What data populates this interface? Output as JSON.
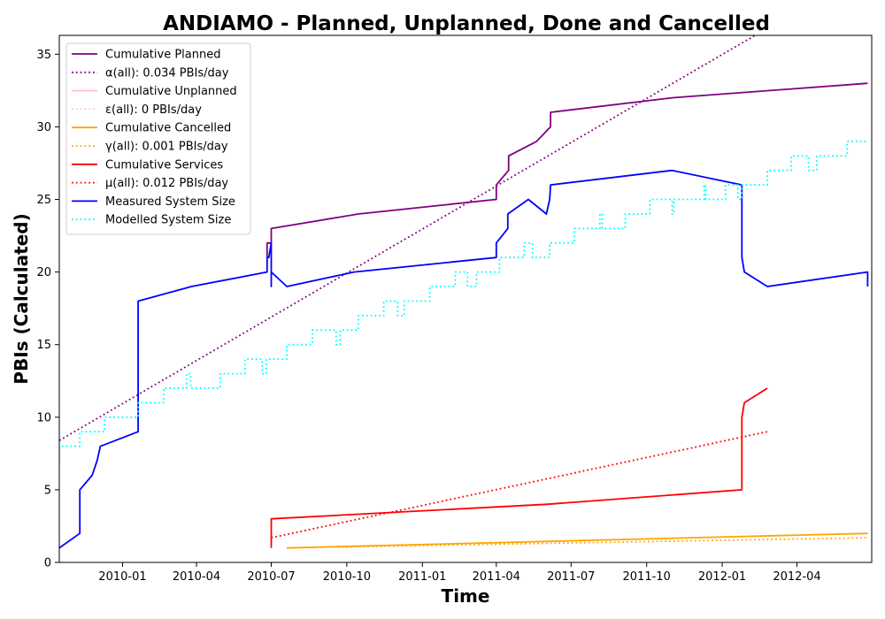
{
  "chart_data": {
    "type": "line",
    "title": "ANDIAMO - Planned, Unplanned, Done  and Cancelled",
    "xlabel": "Time",
    "ylabel": "PBIs (Calculated)",
    "xlim": [
      "2009-10-16",
      "2012-07-01"
    ],
    "ylim": [
      0,
      36.3
    ],
    "x_ticks": [
      "2010-01",
      "2010-04",
      "2010-07",
      "2010-10",
      "2011-01",
      "2011-04",
      "2011-07",
      "2011-10",
      "2012-01",
      "2012-04"
    ],
    "y_ticks": [
      0,
      5,
      10,
      15,
      20,
      25,
      30,
      35
    ],
    "grid": false,
    "legend_position": "top-left",
    "series": [
      {
        "name": "Cumulative Planned",
        "color": "#800080",
        "style": "solid",
        "points": [
          [
            "2010-06-26",
            21
          ],
          [
            "2010-06-26",
            22
          ],
          [
            "2010-07-01",
            22
          ],
          [
            "2010-07-01",
            23
          ],
          [
            "2010-10-15",
            24
          ],
          [
            "2011-04-01",
            25
          ],
          [
            "2011-04-01",
            26
          ],
          [
            "2011-04-16",
            27
          ],
          [
            "2011-04-16",
            28
          ],
          [
            "2011-05-20",
            29
          ],
          [
            "2011-06-06",
            30
          ],
          [
            "2011-06-06",
            31
          ],
          [
            "2011-11-01",
            32
          ],
          [
            "2012-06-26",
            33
          ]
        ]
      },
      {
        "name": "α(all): 0.034 PBIs/day",
        "color": "#800080",
        "style": "dotted",
        "points": [
          [
            "2009-10-16",
            8.4
          ],
          [
            "2012-02-10",
            36.3
          ]
        ]
      },
      {
        "name": "Cumulative Unplanned",
        "color": "#ffc0cb",
        "style": "solid",
        "points": []
      },
      {
        "name": "ε(all): 0 PBIs/day",
        "color": "#ffc0cb",
        "style": "dotted",
        "points": []
      },
      {
        "name": "Cumulative Cancelled",
        "color": "#ffa500",
        "style": "solid",
        "points": [
          [
            "2010-07-20",
            1
          ],
          [
            "2012-06-26",
            2
          ]
        ]
      },
      {
        "name": "γ(all): 0.001 PBIs/day",
        "color": "#ffa500",
        "style": "dotted",
        "points": [
          [
            "2010-07-20",
            1
          ],
          [
            "2012-06-26",
            1.7
          ]
        ]
      },
      {
        "name": "Cumulative Services",
        "color": "#ff0000",
        "style": "solid",
        "points": [
          [
            "2010-07-01",
            1
          ],
          [
            "2010-07-01",
            3
          ],
          [
            "2011-06-01",
            4
          ],
          [
            "2012-01-25",
            5
          ],
          [
            "2012-01-25",
            10
          ],
          [
            "2012-01-28",
            11
          ],
          [
            "2012-02-25",
            12
          ]
        ]
      },
      {
        "name": "μ(all): 0.012 PBIs/day",
        "color": "#ff0000",
        "style": "dotted",
        "points": [
          [
            "2010-07-01",
            1.7
          ],
          [
            "2012-02-25",
            9
          ]
        ]
      },
      {
        "name": "Measured System Size",
        "color": "#0000ff",
        "style": "solid",
        "points": [
          [
            "2009-10-16",
            1
          ],
          [
            "2009-11-10",
            2
          ],
          [
            "2009-11-10",
            5
          ],
          [
            "2009-11-25",
            6
          ],
          [
            "2009-12-01",
            7
          ],
          [
            "2009-12-05",
            8
          ],
          [
            "2010-01-20",
            9
          ],
          [
            "2010-01-20",
            18
          ],
          [
            "2010-03-26",
            19
          ],
          [
            "2010-06-26",
            20
          ],
          [
            "2010-06-26",
            21
          ],
          [
            "2010-06-28",
            21
          ],
          [
            "2010-07-01",
            22
          ],
          [
            "2010-07-01",
            21
          ],
          [
            "2010-07-01",
            19
          ],
          [
            "2010-07-01",
            20
          ],
          [
            "2010-07-20",
            19
          ],
          [
            "2010-10-10",
            20
          ],
          [
            "2011-04-01",
            21
          ],
          [
            "2011-04-01",
            22
          ],
          [
            "2011-04-15",
            23
          ],
          [
            "2011-04-15",
            24
          ],
          [
            "2011-05-10",
            25
          ],
          [
            "2011-06-01",
            24
          ],
          [
            "2011-06-05",
            25
          ],
          [
            "2011-06-06",
            26
          ],
          [
            "2011-11-01",
            27
          ],
          [
            "2012-01-25",
            26
          ],
          [
            "2012-01-25",
            21
          ],
          [
            "2012-01-28",
            20
          ],
          [
            "2012-02-25",
            19
          ],
          [
            "2012-06-26",
            20
          ],
          [
            "2012-06-26",
            19
          ]
        ]
      },
      {
        "name": "Modelled System Size",
        "color": "#00ffff",
        "style": "dotted",
        "points": [
          [
            "2009-10-16",
            7
          ],
          [
            "2009-10-16",
            8
          ],
          [
            "2009-11-10",
            8
          ],
          [
            "2009-11-10",
            9
          ],
          [
            "2009-12-10",
            9
          ],
          [
            "2009-12-10",
            10
          ],
          [
            "2010-01-20",
            10
          ],
          [
            "2010-01-20",
            11
          ],
          [
            "2010-02-20",
            11
          ],
          [
            "2010-02-20",
            12
          ],
          [
            "2010-03-20",
            12
          ],
          [
            "2010-03-20",
            13
          ],
          [
            "2010-03-25",
            13
          ],
          [
            "2010-03-25",
            12
          ],
          [
            "2010-04-30",
            12
          ],
          [
            "2010-04-30",
            13
          ],
          [
            "2010-05-30",
            13
          ],
          [
            "2010-05-30",
            14
          ],
          [
            "2010-06-20",
            14
          ],
          [
            "2010-06-20",
            13
          ],
          [
            "2010-06-25",
            13
          ],
          [
            "2010-06-25",
            14
          ],
          [
            "2010-07-20",
            14
          ],
          [
            "2010-07-20",
            15
          ],
          [
            "2010-08-20",
            15
          ],
          [
            "2010-08-20",
            16
          ],
          [
            "2010-09-18",
            16
          ],
          [
            "2010-09-18",
            15
          ],
          [
            "2010-09-23",
            15
          ],
          [
            "2010-09-23",
            16
          ],
          [
            "2010-10-15",
            16
          ],
          [
            "2010-10-15",
            17
          ],
          [
            "2010-11-15",
            17
          ],
          [
            "2010-11-15",
            18
          ],
          [
            "2010-12-02",
            18
          ],
          [
            "2010-12-02",
            17
          ],
          [
            "2010-12-10",
            17
          ],
          [
            "2010-12-10",
            18
          ],
          [
            "2011-01-10",
            18
          ],
          [
            "2011-01-10",
            19
          ],
          [
            "2011-02-10",
            19
          ],
          [
            "2011-02-10",
            20
          ],
          [
            "2011-02-25",
            20
          ],
          [
            "2011-02-25",
            19
          ],
          [
            "2011-03-08",
            19
          ],
          [
            "2011-03-08",
            20
          ],
          [
            "2011-04-05",
            20
          ],
          [
            "2011-04-05",
            21
          ],
          [
            "2011-05-05",
            21
          ],
          [
            "2011-05-05",
            22
          ],
          [
            "2011-05-15",
            22
          ],
          [
            "2011-05-15",
            21
          ],
          [
            "2011-06-05",
            21
          ],
          [
            "2011-06-05",
            22
          ],
          [
            "2011-07-05",
            22
          ],
          [
            "2011-07-05",
            23
          ],
          [
            "2011-08-05",
            23
          ],
          [
            "2011-08-05",
            24
          ],
          [
            "2011-08-08",
            24
          ],
          [
            "2011-08-08",
            23
          ],
          [
            "2011-09-05",
            23
          ],
          [
            "2011-09-05",
            24
          ],
          [
            "2011-10-05",
            24
          ],
          [
            "2011-10-05",
            25
          ],
          [
            "2011-11-01",
            25
          ],
          [
            "2011-11-01",
            24
          ],
          [
            "2011-11-03",
            24
          ],
          [
            "2011-11-03",
            25
          ],
          [
            "2011-12-10",
            25
          ],
          [
            "2011-12-10",
            26
          ],
          [
            "2011-12-12",
            26
          ],
          [
            "2011-12-12",
            25
          ],
          [
            "2012-01-05",
            25
          ],
          [
            "2012-01-05",
            26
          ],
          [
            "2012-01-20",
            26
          ],
          [
            "2012-01-20",
            25
          ],
          [
            "2012-01-25",
            25
          ],
          [
            "2012-01-25",
            26
          ],
          [
            "2012-02-25",
            26
          ],
          [
            "2012-02-25",
            27
          ],
          [
            "2012-03-25",
            27
          ],
          [
            "2012-03-25",
            28
          ],
          [
            "2012-04-15",
            28
          ],
          [
            "2012-04-15",
            27
          ],
          [
            "2012-04-25",
            27
          ],
          [
            "2012-04-25",
            28
          ],
          [
            "2012-06-01",
            28
          ],
          [
            "2012-06-01",
            29
          ],
          [
            "2012-06-26",
            29
          ]
        ]
      }
    ]
  }
}
